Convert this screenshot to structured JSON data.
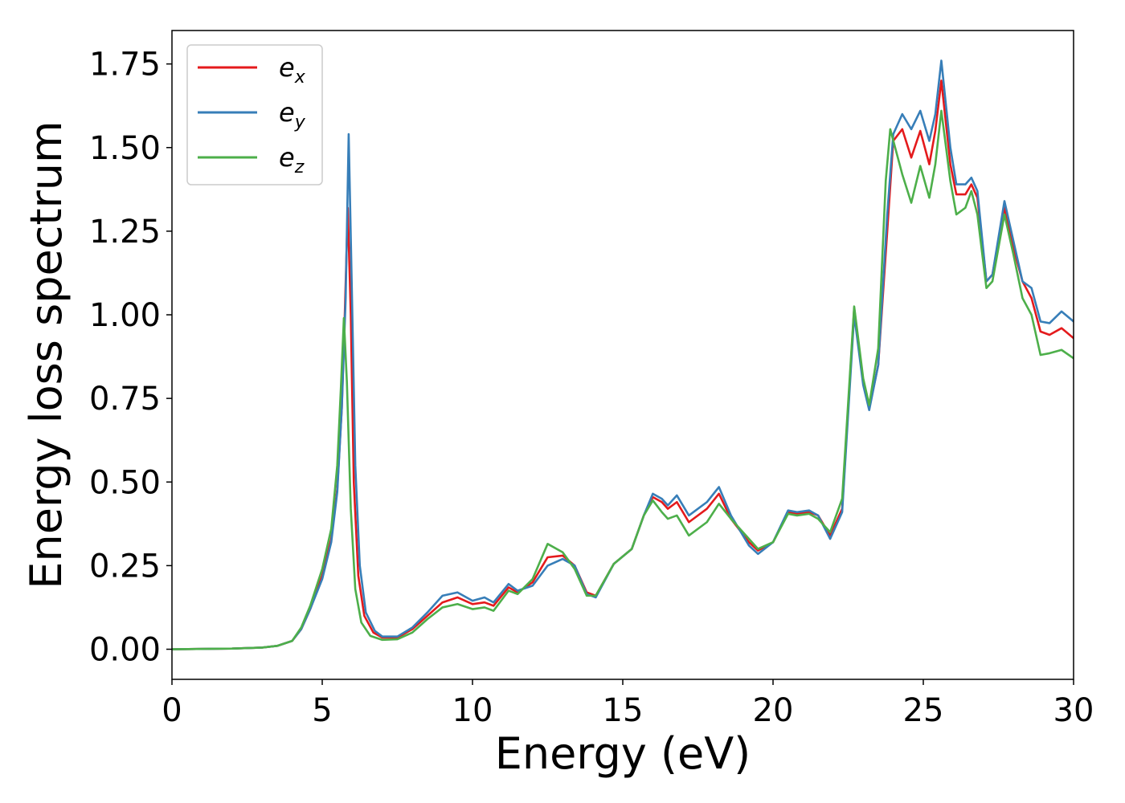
{
  "chart_data": {
    "type": "line",
    "title": "",
    "xlabel": "Energy (eV)",
    "ylabel": "Energy loss spectrum",
    "xlim": [
      0,
      30
    ],
    "ylim": [
      -0.09,
      1.85
    ],
    "xticks": [
      0,
      5,
      10,
      15,
      20,
      25,
      30
    ],
    "xtick_labels": [
      "0",
      "5",
      "10",
      "15",
      "20",
      "25",
      "30"
    ],
    "yticks": [
      0.0,
      0.25,
      0.5,
      0.75,
      1.0,
      1.25,
      1.5,
      1.75
    ],
    "ytick_labels": [
      "0.00",
      "0.25",
      "0.50",
      "0.75",
      "1.00",
      "1.25",
      "1.50",
      "1.75"
    ],
    "grid": false,
    "legend_position": "top-left",
    "series": [
      {
        "name": "e_x",
        "label_base": "e",
        "label_sub": "x",
        "color": "#e41a1c",
        "points": [
          [
            0,
            0.0
          ],
          [
            2,
            0.002
          ],
          [
            3,
            0.005
          ],
          [
            3.5,
            0.01
          ],
          [
            4.0,
            0.025
          ],
          [
            4.3,
            0.06
          ],
          [
            4.6,
            0.12
          ],
          [
            5.0,
            0.22
          ],
          [
            5.3,
            0.33
          ],
          [
            5.5,
            0.48
          ],
          [
            5.65,
            0.72
          ],
          [
            5.75,
            1.0
          ],
          [
            5.85,
            1.32
          ],
          [
            5.95,
            1.0
          ],
          [
            6.05,
            0.5
          ],
          [
            6.2,
            0.22
          ],
          [
            6.4,
            0.1
          ],
          [
            6.7,
            0.05
          ],
          [
            7.0,
            0.035
          ],
          [
            7.5,
            0.035
          ],
          [
            8.0,
            0.06
          ],
          [
            8.5,
            0.1
          ],
          [
            9.0,
            0.14
          ],
          [
            9.5,
            0.155
          ],
          [
            10.0,
            0.135
          ],
          [
            10.4,
            0.14
          ],
          [
            10.7,
            0.13
          ],
          [
            11.2,
            0.185
          ],
          [
            11.5,
            0.17
          ],
          [
            12.0,
            0.2
          ],
          [
            12.5,
            0.275
          ],
          [
            13.0,
            0.28
          ],
          [
            13.4,
            0.25
          ],
          [
            13.8,
            0.17
          ],
          [
            14.1,
            0.16
          ],
          [
            14.7,
            0.255
          ],
          [
            15.3,
            0.3
          ],
          [
            15.7,
            0.4
          ],
          [
            16.0,
            0.455
          ],
          [
            16.3,
            0.44
          ],
          [
            16.5,
            0.42
          ],
          [
            16.8,
            0.44
          ],
          [
            17.2,
            0.38
          ],
          [
            17.8,
            0.42
          ],
          [
            18.2,
            0.465
          ],
          [
            18.6,
            0.39
          ],
          [
            19.2,
            0.32
          ],
          [
            19.5,
            0.295
          ],
          [
            20.0,
            0.32
          ],
          [
            20.5,
            0.41
          ],
          [
            20.8,
            0.405
          ],
          [
            21.2,
            0.41
          ],
          [
            21.5,
            0.4
          ],
          [
            21.9,
            0.34
          ],
          [
            22.3,
            0.42
          ],
          [
            22.7,
            1.02
          ],
          [
            23.0,
            0.8
          ],
          [
            23.2,
            0.72
          ],
          [
            23.5,
            0.85
          ],
          [
            23.8,
            1.25
          ],
          [
            24.0,
            1.52
          ],
          [
            24.3,
            1.555
          ],
          [
            24.6,
            1.47
          ],
          [
            24.9,
            1.55
          ],
          [
            25.2,
            1.45
          ],
          [
            25.4,
            1.55
          ],
          [
            25.6,
            1.7
          ],
          [
            25.9,
            1.45
          ],
          [
            26.1,
            1.36
          ],
          [
            26.4,
            1.36
          ],
          [
            26.6,
            1.39
          ],
          [
            26.8,
            1.35
          ],
          [
            27.1,
            1.1
          ],
          [
            27.3,
            1.12
          ],
          [
            27.7,
            1.32
          ],
          [
            28.0,
            1.2
          ],
          [
            28.3,
            1.1
          ],
          [
            28.6,
            1.05
          ],
          [
            28.9,
            0.95
          ],
          [
            29.2,
            0.94
          ],
          [
            29.6,
            0.96
          ],
          [
            30.0,
            0.93
          ]
        ]
      },
      {
        "name": "e_y",
        "label_base": "e",
        "label_sub": "y",
        "color": "#377eb8",
        "points": [
          [
            0,
            0.0
          ],
          [
            2,
            0.002
          ],
          [
            3,
            0.005
          ],
          [
            3.5,
            0.01
          ],
          [
            4.0,
            0.025
          ],
          [
            4.3,
            0.06
          ],
          [
            4.6,
            0.12
          ],
          [
            5.0,
            0.21
          ],
          [
            5.3,
            0.32
          ],
          [
            5.5,
            0.47
          ],
          [
            5.65,
            0.72
          ],
          [
            5.78,
            1.05
          ],
          [
            5.88,
            1.54
          ],
          [
            5.98,
            1.1
          ],
          [
            6.1,
            0.55
          ],
          [
            6.25,
            0.25
          ],
          [
            6.45,
            0.11
          ],
          [
            6.75,
            0.055
          ],
          [
            7.0,
            0.038
          ],
          [
            7.5,
            0.038
          ],
          [
            8.0,
            0.065
          ],
          [
            8.5,
            0.11
          ],
          [
            9.0,
            0.16
          ],
          [
            9.5,
            0.17
          ],
          [
            10.0,
            0.145
          ],
          [
            10.4,
            0.155
          ],
          [
            10.7,
            0.14
          ],
          [
            11.2,
            0.195
          ],
          [
            11.5,
            0.175
          ],
          [
            12.0,
            0.19
          ],
          [
            12.5,
            0.25
          ],
          [
            13.0,
            0.27
          ],
          [
            13.4,
            0.25
          ],
          [
            13.8,
            0.165
          ],
          [
            14.1,
            0.155
          ],
          [
            14.7,
            0.255
          ],
          [
            15.3,
            0.3
          ],
          [
            15.7,
            0.4
          ],
          [
            16.0,
            0.465
          ],
          [
            16.3,
            0.45
          ],
          [
            16.5,
            0.43
          ],
          [
            16.8,
            0.46
          ],
          [
            17.2,
            0.4
          ],
          [
            17.8,
            0.44
          ],
          [
            18.2,
            0.485
          ],
          [
            18.6,
            0.4
          ],
          [
            19.2,
            0.31
          ],
          [
            19.5,
            0.285
          ],
          [
            20.0,
            0.32
          ],
          [
            20.5,
            0.415
          ],
          [
            20.8,
            0.41
          ],
          [
            21.2,
            0.415
          ],
          [
            21.5,
            0.4
          ],
          [
            21.9,
            0.33
          ],
          [
            22.3,
            0.41
          ],
          [
            22.7,
            1.0
          ],
          [
            23.0,
            0.79
          ],
          [
            23.2,
            0.715
          ],
          [
            23.5,
            0.85
          ],
          [
            23.8,
            1.3
          ],
          [
            24.0,
            1.54
          ],
          [
            24.3,
            1.6
          ],
          [
            24.6,
            1.555
          ],
          [
            24.9,
            1.61
          ],
          [
            25.2,
            1.52
          ],
          [
            25.4,
            1.6
          ],
          [
            25.6,
            1.76
          ],
          [
            25.9,
            1.5
          ],
          [
            26.1,
            1.39
          ],
          [
            26.4,
            1.39
          ],
          [
            26.6,
            1.41
          ],
          [
            26.8,
            1.37
          ],
          [
            27.1,
            1.1
          ],
          [
            27.3,
            1.12
          ],
          [
            27.7,
            1.34
          ],
          [
            28.0,
            1.22
          ],
          [
            28.3,
            1.1
          ],
          [
            28.6,
            1.08
          ],
          [
            28.9,
            0.98
          ],
          [
            29.2,
            0.975
          ],
          [
            29.6,
            1.01
          ],
          [
            30.0,
            0.98
          ]
        ]
      },
      {
        "name": "e_z",
        "label_base": "e",
        "label_sub": "z",
        "color": "#4daf4a",
        "points": [
          [
            0,
            0.0
          ],
          [
            2,
            0.002
          ],
          [
            3,
            0.005
          ],
          [
            3.5,
            0.01
          ],
          [
            4.0,
            0.025
          ],
          [
            4.3,
            0.065
          ],
          [
            4.6,
            0.13
          ],
          [
            5.0,
            0.24
          ],
          [
            5.3,
            0.36
          ],
          [
            5.5,
            0.55
          ],
          [
            5.62,
            0.78
          ],
          [
            5.72,
            0.99
          ],
          [
            5.82,
            0.8
          ],
          [
            5.95,
            0.42
          ],
          [
            6.1,
            0.18
          ],
          [
            6.3,
            0.08
          ],
          [
            6.6,
            0.04
          ],
          [
            7.0,
            0.028
          ],
          [
            7.5,
            0.03
          ],
          [
            8.0,
            0.05
          ],
          [
            8.5,
            0.09
          ],
          [
            9.0,
            0.125
          ],
          [
            9.5,
            0.135
          ],
          [
            10.0,
            0.12
          ],
          [
            10.4,
            0.125
          ],
          [
            10.7,
            0.115
          ],
          [
            11.2,
            0.175
          ],
          [
            11.5,
            0.165
          ],
          [
            12.0,
            0.21
          ],
          [
            12.5,
            0.315
          ],
          [
            13.0,
            0.29
          ],
          [
            13.4,
            0.24
          ],
          [
            13.8,
            0.16
          ],
          [
            14.1,
            0.16
          ],
          [
            14.7,
            0.255
          ],
          [
            15.3,
            0.3
          ],
          [
            15.7,
            0.4
          ],
          [
            16.0,
            0.445
          ],
          [
            16.3,
            0.41
          ],
          [
            16.5,
            0.39
          ],
          [
            16.8,
            0.4
          ],
          [
            17.2,
            0.34
          ],
          [
            17.8,
            0.38
          ],
          [
            18.2,
            0.435
          ],
          [
            18.6,
            0.39
          ],
          [
            19.2,
            0.33
          ],
          [
            19.5,
            0.3
          ],
          [
            20.0,
            0.32
          ],
          [
            20.5,
            0.405
          ],
          [
            20.8,
            0.4
          ],
          [
            21.2,
            0.405
          ],
          [
            21.5,
            0.39
          ],
          [
            21.9,
            0.35
          ],
          [
            22.3,
            0.45
          ],
          [
            22.7,
            1.025
          ],
          [
            23.0,
            0.81
          ],
          [
            23.2,
            0.73
          ],
          [
            23.5,
            0.9
          ],
          [
            23.75,
            1.4
          ],
          [
            23.9,
            1.555
          ],
          [
            24.3,
            1.42
          ],
          [
            24.6,
            1.335
          ],
          [
            24.9,
            1.445
          ],
          [
            25.2,
            1.35
          ],
          [
            25.4,
            1.45
          ],
          [
            25.6,
            1.61
          ],
          [
            25.9,
            1.4
          ],
          [
            26.1,
            1.3
          ],
          [
            26.4,
            1.32
          ],
          [
            26.6,
            1.37
          ],
          [
            26.8,
            1.3
          ],
          [
            27.1,
            1.08
          ],
          [
            27.3,
            1.1
          ],
          [
            27.7,
            1.3
          ],
          [
            28.0,
            1.18
          ],
          [
            28.3,
            1.05
          ],
          [
            28.6,
            1.0
          ],
          [
            28.9,
            0.88
          ],
          [
            29.2,
            0.885
          ],
          [
            29.6,
            0.895
          ],
          [
            30.0,
            0.87
          ]
        ]
      }
    ]
  }
}
